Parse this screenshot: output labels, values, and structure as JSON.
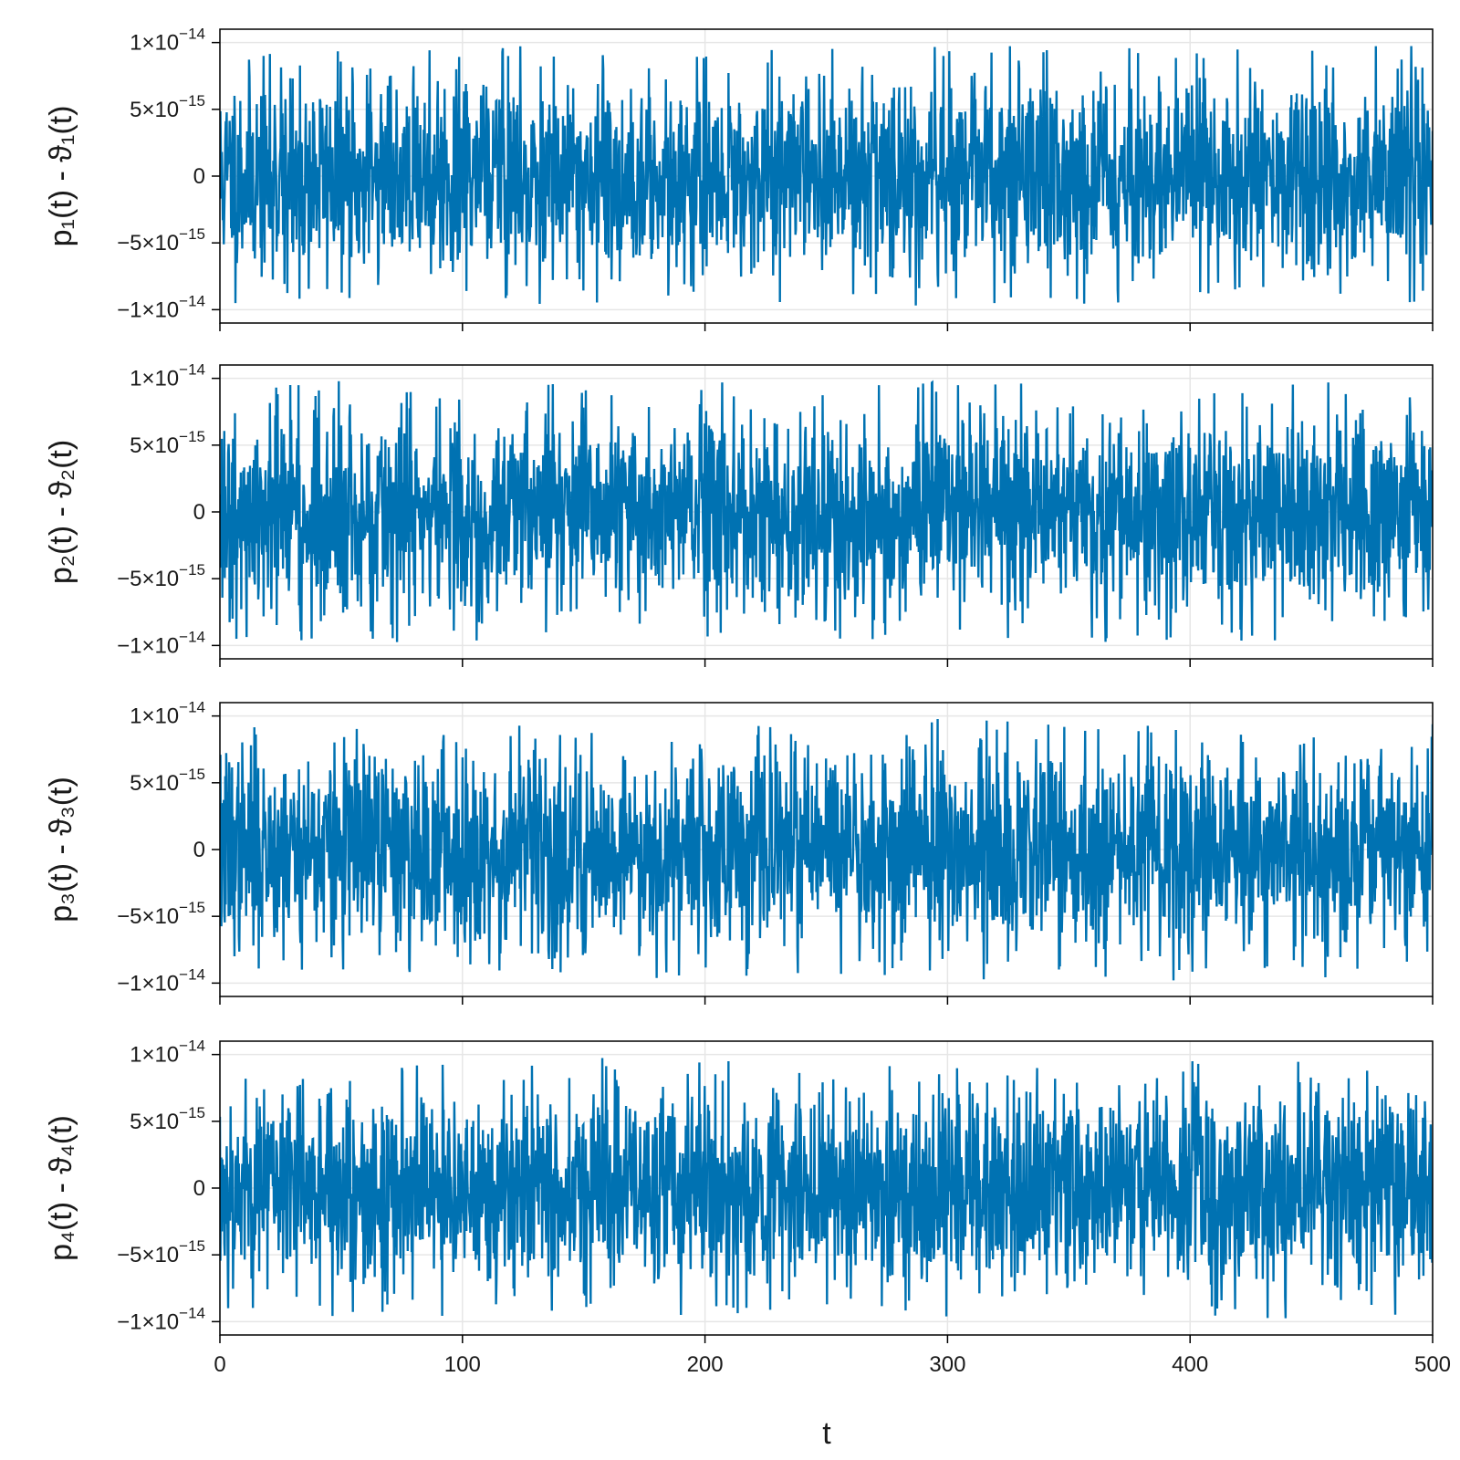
{
  "figure": {
    "xlabel": "t"
  },
  "chart_data": [
    {
      "type": "line",
      "title": "",
      "ylabel": "p₁(t) - ϑ₁(t)",
      "xlim": [
        0,
        500
      ],
      "ylim": [
        -1.1e-14,
        1.1e-14
      ],
      "grid": true,
      "x_ticks": [
        0,
        100,
        200,
        300,
        400,
        500
      ],
      "x_tick_labels": [
        "0",
        "100",
        "200",
        "300",
        "400",
        "500"
      ],
      "x_tick_labels_visible": false,
      "y_ticks": [
        1e-14,
        5e-15,
        0,
        -5e-15,
        -1e-14
      ],
      "y_tick_labels": [
        {
          "mant": "1×10",
          "exp": "−14"
        },
        {
          "mant": "5×10",
          "exp": "−15"
        },
        {
          "mant": "0",
          "exp": ""
        },
        {
          "mant": "−5×10",
          "exp": "−15"
        },
        {
          "mant": "−1×10",
          "exp": "−14"
        }
      ],
      "series": [
        {
          "color": "#0072b2",
          "t_range": [
            0,
            500
          ],
          "n_points": 2500,
          "amplitude_max": 9.8e-15,
          "seed": 11
        }
      ]
    },
    {
      "type": "line",
      "title": "",
      "ylabel": "p₂(t) - ϑ₂(t)",
      "xlim": [
        0,
        500
      ],
      "ylim": [
        -1.1e-14,
        1.1e-14
      ],
      "grid": true,
      "x_ticks": [
        0,
        100,
        200,
        300,
        400,
        500
      ],
      "x_tick_labels": [
        "0",
        "100",
        "200",
        "300",
        "400",
        "500"
      ],
      "x_tick_labels_visible": false,
      "y_ticks": [
        1e-14,
        5e-15,
        0,
        -5e-15,
        -1e-14
      ],
      "y_tick_labels": [
        {
          "mant": "1×10",
          "exp": "−14"
        },
        {
          "mant": "5×10",
          "exp": "−15"
        },
        {
          "mant": "0",
          "exp": ""
        },
        {
          "mant": "−5×10",
          "exp": "−15"
        },
        {
          "mant": "−1×10",
          "exp": "−14"
        }
      ],
      "series": [
        {
          "color": "#0072b2",
          "t_range": [
            0,
            500
          ],
          "n_points": 2500,
          "amplitude_max": 9.8e-15,
          "seed": 23
        }
      ]
    },
    {
      "type": "line",
      "title": "",
      "ylabel": "p₃(t) - ϑ₃(t)",
      "xlim": [
        0,
        500
      ],
      "ylim": [
        -1.1e-14,
        1.1e-14
      ],
      "grid": true,
      "x_ticks": [
        0,
        100,
        200,
        300,
        400,
        500
      ],
      "x_tick_labels": [
        "0",
        "100",
        "200",
        "300",
        "400",
        "500"
      ],
      "x_tick_labels_visible": false,
      "y_ticks": [
        1e-14,
        5e-15,
        0,
        -5e-15,
        -1e-14
      ],
      "y_tick_labels": [
        {
          "mant": "1×10",
          "exp": "−14"
        },
        {
          "mant": "5×10",
          "exp": "−15"
        },
        {
          "mant": "0",
          "exp": ""
        },
        {
          "mant": "−5×10",
          "exp": "−15"
        },
        {
          "mant": "−1×10",
          "exp": "−14"
        }
      ],
      "series": [
        {
          "color": "#0072b2",
          "t_range": [
            0,
            500
          ],
          "n_points": 2500,
          "amplitude_max": 9.8e-15,
          "seed": 37
        }
      ]
    },
    {
      "type": "line",
      "title": "",
      "ylabel": "p₄(t) - ϑ₄(t)",
      "xlim": [
        0,
        500
      ],
      "ylim": [
        -1.1e-14,
        1.1e-14
      ],
      "grid": true,
      "x_ticks": [
        0,
        100,
        200,
        300,
        400,
        500
      ],
      "x_tick_labels": [
        "0",
        "100",
        "200",
        "300",
        "400",
        "500"
      ],
      "x_tick_labels_visible": true,
      "y_ticks": [
        1e-14,
        5e-15,
        0,
        -5e-15,
        -1e-14
      ],
      "y_tick_labels": [
        {
          "mant": "1×10",
          "exp": "−14"
        },
        {
          "mant": "5×10",
          "exp": "−15"
        },
        {
          "mant": "0",
          "exp": ""
        },
        {
          "mant": "−5×10",
          "exp": "−15"
        },
        {
          "mant": "−1×10",
          "exp": "−14"
        }
      ],
      "series": [
        {
          "color": "#0072b2",
          "t_range": [
            0,
            500
          ],
          "n_points": 2500,
          "amplitude_max": 9.8e-15,
          "seed": 53
        }
      ]
    }
  ]
}
